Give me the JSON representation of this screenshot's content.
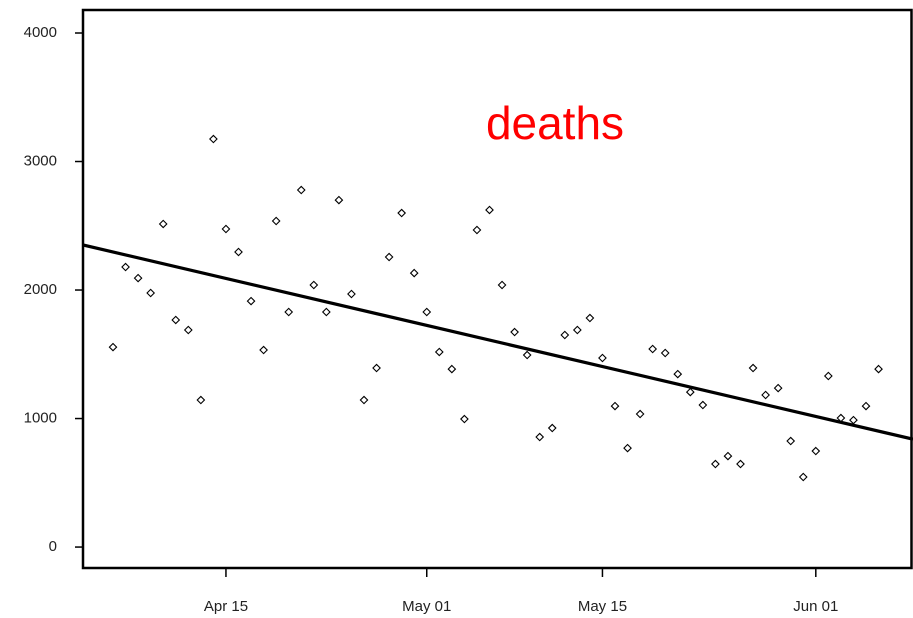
{
  "chart_data": {
    "type": "line",
    "annotation": "deaths",
    "x": [
      "Apr 06",
      "Apr 07",
      "Apr 08",
      "Apr 09",
      "Apr 10",
      "Apr 11",
      "Apr 12",
      "Apr 13",
      "Apr 14",
      "Apr 15",
      "Apr 16",
      "Apr 17",
      "Apr 18",
      "Apr 19",
      "Apr 20",
      "Apr 21",
      "Apr 22",
      "Apr 23",
      "Apr 24",
      "Apr 25",
      "Apr 26",
      "Apr 27",
      "Apr 28",
      "Apr 29",
      "Apr 30",
      "May 01",
      "May 02",
      "May 03",
      "May 04",
      "May 05",
      "May 06",
      "May 07",
      "May 08",
      "May 09",
      "May 10",
      "May 11",
      "May 12",
      "May 13",
      "May 14",
      "May 15",
      "May 16",
      "May 17",
      "May 18",
      "May 19",
      "May 20",
      "May 21",
      "May 22",
      "May 23",
      "May 24",
      "May 25",
      "May 26",
      "May 27",
      "May 28",
      "May 29",
      "May 30",
      "May 31",
      "Jun 01",
      "Jun 02",
      "Jun 03",
      "Jun 04",
      "Jun 05",
      "Jun 06"
    ],
    "values": [
      1556,
      2179,
      2093,
      1977,
      2514,
      1767,
      1689,
      1144,
      3175,
      2475,
      2296,
      1914,
      1533,
      2537,
      1829,
      2778,
      2039,
      1829,
      2700,
      1969,
      1144,
      1393,
      2257,
      2599,
      2132,
      1829,
      1518,
      1385,
      996,
      2467,
      2623,
      2039,
      1673,
      1494,
      856,
      926,
      1650,
      1689,
      1782,
      1471,
      1097,
      770,
      1035,
      1541,
      1510,
      1346,
      1206,
      1105,
      646,
      708,
      646,
      1393,
      1183,
      1237,
      825,
      545,
      747,
      1331,
      1004,
      988,
      1097,
      1385
    ],
    "color": "#000000",
    "fit": [
      2296,
      902
    ],
    "ylim": [
      -163,
      4179
    ],
    "yticks": [
      0,
      1000,
      2000,
      3000,
      4000
    ],
    "xticks": [
      "Apr 15",
      "May 01",
      "May 15",
      "Jun 01"
    ]
  }
}
